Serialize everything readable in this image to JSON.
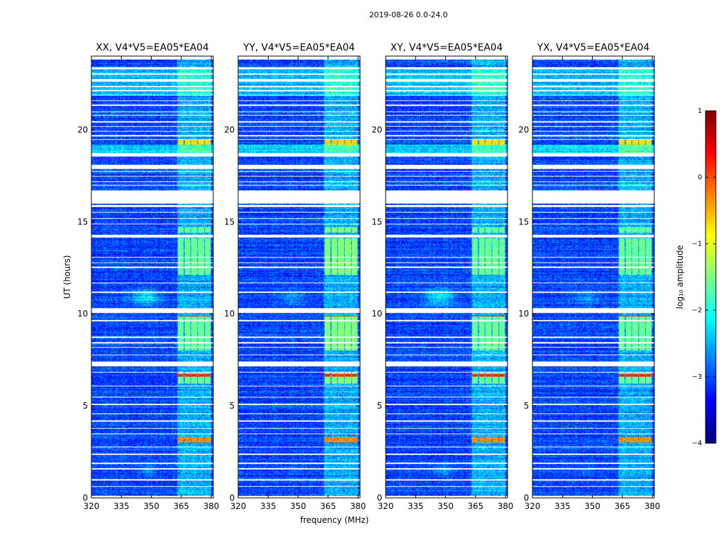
{
  "chart_data": {
    "type": "heatmap",
    "title": "2019-08-26 0.0-24.0",
    "xlabel": "frequency (MHz)",
    "ylabel": "UT (hours)",
    "xlim": [
      320,
      381
    ],
    "ylim": [
      0,
      24
    ],
    "xticks": [
      320,
      335,
      350,
      365,
      380
    ],
    "yticks": [
      0,
      5,
      10,
      15,
      20
    ],
    "panels": [
      {
        "title": "XX, V4*V5=EA05*EA04",
        "rfi_level": 1.0,
        "blob_level": 0.55
      },
      {
        "title": "YY, V4*V5=EA05*EA04",
        "rfi_level": 1.1,
        "blob_level": 0.25
      },
      {
        "title": "XY, V4*V5=EA05*EA04",
        "rfi_level": 1.0,
        "blob_level": 0.6
      },
      {
        "title": "YX, V4*V5=EA05*EA04",
        "rfi_level": 0.85,
        "blob_level": 0.25
      }
    ],
    "colorbar": {
      "label": "log₁₀ amplitude",
      "range": [
        -4,
        1
      ],
      "ticks": [
        "1",
        "0",
        "−1",
        "−2",
        "−3",
        "−4"
      ],
      "colormap": "jet"
    },
    "flagged_time_ranges_hours": [
      [
        0.0,
        0.1
      ],
      [
        0.6,
        0.65
      ],
      [
        0.95,
        1.0
      ],
      [
        1.55,
        1.6
      ],
      [
        1.85,
        1.9
      ],
      [
        2.35,
        2.4
      ],
      [
        2.75,
        2.8
      ],
      [
        3.45,
        3.5
      ],
      [
        3.75,
        3.8
      ],
      [
        4.15,
        4.2
      ],
      [
        4.55,
        4.6
      ],
      [
        5.05,
        5.1
      ],
      [
        5.45,
        5.5
      ],
      [
        6.05,
        6.1
      ],
      [
        6.8,
        6.85
      ],
      [
        7.15,
        7.4
      ],
      [
        7.75,
        7.8
      ],
      [
        8.15,
        8.2
      ],
      [
        8.4,
        8.45
      ],
      [
        8.7,
        8.75
      ],
      [
        9.6,
        9.65
      ],
      [
        10.05,
        10.3
      ],
      [
        11.15,
        11.2
      ],
      [
        11.65,
        11.7
      ],
      [
        12.5,
        12.55
      ],
      [
        12.75,
        12.8
      ],
      [
        13.05,
        13.1
      ],
      [
        14.15,
        14.3
      ],
      [
        14.85,
        14.9
      ],
      [
        15.15,
        15.2
      ],
      [
        15.5,
        15.55
      ],
      [
        15.8,
        15.9
      ],
      [
        16.0,
        16.7
      ],
      [
        16.95,
        17.0
      ],
      [
        17.15,
        17.2
      ],
      [
        17.45,
        17.5
      ],
      [
        17.7,
        17.75
      ],
      [
        17.85,
        18.1
      ],
      [
        18.55,
        18.75
      ],
      [
        19.45,
        19.5
      ],
      [
        19.65,
        19.7
      ],
      [
        19.9,
        19.95
      ],
      [
        20.15,
        20.2
      ],
      [
        20.4,
        20.45
      ],
      [
        20.75,
        20.8
      ],
      [
        20.95,
        21.0
      ],
      [
        21.3,
        21.35
      ],
      [
        21.55,
        21.6
      ],
      [
        21.85,
        21.9
      ],
      [
        22.1,
        22.15
      ],
      [
        22.3,
        22.4
      ],
      [
        22.6,
        22.75
      ],
      [
        23.0,
        23.05
      ],
      [
        23.3,
        23.4
      ],
      [
        23.8,
        24.0
      ]
    ],
    "rfi_frequency_band_mhz": [
      363,
      380
    ],
    "rfi_active_hours": [
      [
        3.0,
        3.3
      ],
      [
        6.2,
        6.8
      ],
      [
        8.0,
        9.9
      ],
      [
        12.1,
        14.1
      ],
      [
        14.4,
        14.7
      ],
      [
        19.2,
        19.45
      ]
    ]
  }
}
